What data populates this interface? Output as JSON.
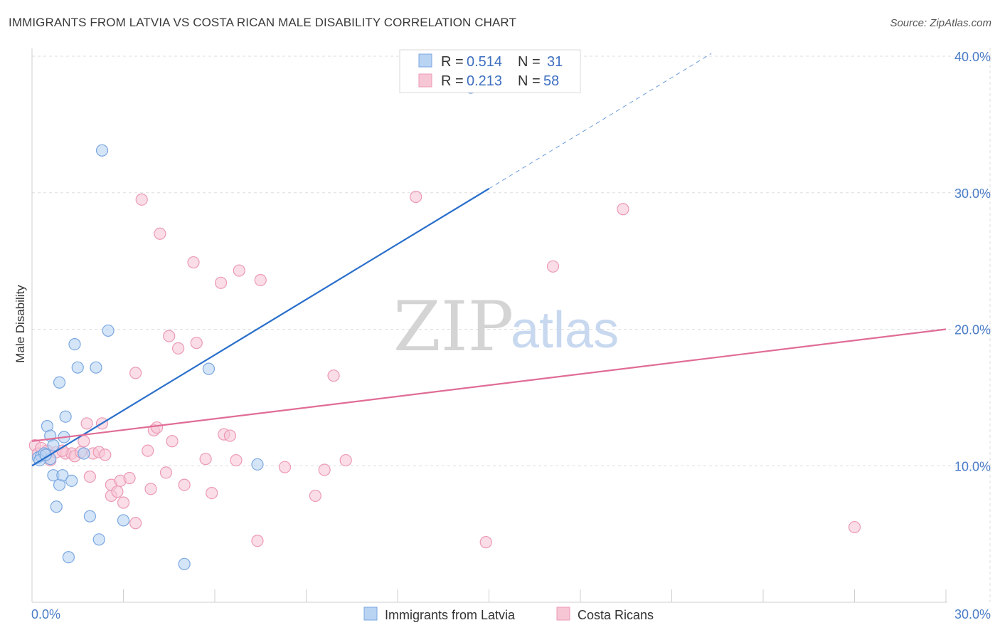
{
  "title": "IMMIGRANTS FROM LATVIA VS COSTA RICAN MALE DISABILITY CORRELATION CHART",
  "source": "Source: ZipAtlas.com",
  "watermark": {
    "zip": "ZIP",
    "atlas": "atlas"
  },
  "colors": {
    "blue_fill": "#b9d3f3",
    "blue_stroke": "#7aa7e0",
    "blue_line": "#2a6fcb",
    "pink_fill": "#f7c6d5",
    "pink_stroke": "#ec9ab5",
    "pink_line": "#e06c96",
    "grid": "#dddddd",
    "axis_text": "#4a7cc7"
  },
  "legend": {
    "rows": [
      {
        "r_label": "R =",
        "r_value": "0.514",
        "n_label": "N =",
        "n_value": "31",
        "series": "latvia"
      },
      {
        "r_label": "R =",
        "r_value": "0.213",
        "n_label": "N =",
        "n_value": "58",
        "series": "costa"
      }
    ]
  },
  "bottom_legend": [
    "Immigrants from Latvia",
    "Costa Ricans"
  ],
  "chart_data": {
    "type": "scatter",
    "title": "IMMIGRANTS FROM LATVIA VS COSTA RICAN MALE DISABILITY CORRELATION CHART",
    "xlabel": "",
    "ylabel": "Male Disability",
    "xlim": [
      0,
      30
    ],
    "ylim": [
      0,
      40
    ],
    "x_tick_labels": [
      "0.0%",
      "30.0%"
    ],
    "y_ticks": [
      10,
      20,
      30,
      40
    ],
    "y_tick_labels": [
      "10.0%",
      "20.0%",
      "30.0%",
      "40.0%"
    ],
    "series": [
      {
        "name": "Immigrants from Latvia",
        "key": "latvia",
        "R": 0.514,
        "N": 31,
        "trend": {
          "x0": 0,
          "y0": 10.0,
          "x1": 15,
          "y1": 30.3,
          "dash_to_x": 22.3,
          "dash_to_y": 40.2
        },
        "points": [
          [
            0.2,
            10.6
          ],
          [
            0.3,
            10.7
          ],
          [
            0.4,
            10.9
          ],
          [
            0.6,
            10.5
          ],
          [
            0.5,
            12.9
          ],
          [
            0.6,
            12.2
          ],
          [
            0.7,
            11.5
          ],
          [
            0.7,
            9.3
          ],
          [
            0.8,
            7.0
          ],
          [
            0.9,
            8.6
          ],
          [
            0.9,
            16.1
          ],
          [
            1.0,
            9.3
          ],
          [
            1.05,
            12.1
          ],
          [
            1.1,
            13.6
          ],
          [
            1.2,
            3.3
          ],
          [
            1.3,
            8.9
          ],
          [
            1.4,
            18.9
          ],
          [
            1.5,
            17.2
          ],
          [
            1.7,
            10.9
          ],
          [
            1.9,
            6.3
          ],
          [
            2.2,
            4.6
          ],
          [
            2.1,
            17.2
          ],
          [
            2.3,
            33.1
          ],
          [
            2.5,
            19.9
          ],
          [
            3.0,
            6.0
          ],
          [
            5.0,
            2.8
          ],
          [
            5.8,
            17.1
          ],
          [
            7.4,
            10.1
          ],
          [
            14.4,
            37.7
          ],
          [
            0.25,
            10.4
          ],
          [
            0.45,
            10.8
          ]
        ]
      },
      {
        "name": "Costa Ricans",
        "key": "costa",
        "R": 0.213,
        "N": 58,
        "trend": {
          "x0": 0,
          "y0": 11.8,
          "x1": 30,
          "y1": 20.0
        },
        "points": [
          [
            0.1,
            11.5
          ],
          [
            0.2,
            10.9
          ],
          [
            0.3,
            11.3
          ],
          [
            0.5,
            11.1
          ],
          [
            0.6,
            10.4
          ],
          [
            0.8,
            11.0
          ],
          [
            1.1,
            10.9
          ],
          [
            1.3,
            10.9
          ],
          [
            1.4,
            10.7
          ],
          [
            1.6,
            11.0
          ],
          [
            1.7,
            11.8
          ],
          [
            1.8,
            13.1
          ],
          [
            1.9,
            9.2
          ],
          [
            2.0,
            10.9
          ],
          [
            2.2,
            11.0
          ],
          [
            2.3,
            13.1
          ],
          [
            2.4,
            10.8
          ],
          [
            2.6,
            7.8
          ],
          [
            2.6,
            8.6
          ],
          [
            2.8,
            8.1
          ],
          [
            2.9,
            8.9
          ],
          [
            3.0,
            7.3
          ],
          [
            3.2,
            9.1
          ],
          [
            3.4,
            5.8
          ],
          [
            3.4,
            16.8
          ],
          [
            3.6,
            29.5
          ],
          [
            3.8,
            11.1
          ],
          [
            3.9,
            8.3
          ],
          [
            4.0,
            12.6
          ],
          [
            4.1,
            12.8
          ],
          [
            4.2,
            27.0
          ],
          [
            4.4,
            9.5
          ],
          [
            4.5,
            19.5
          ],
          [
            4.6,
            11.8
          ],
          [
            4.8,
            18.6
          ],
          [
            5.0,
            8.6
          ],
          [
            5.3,
            24.9
          ],
          [
            5.4,
            19.0
          ],
          [
            5.7,
            10.5
          ],
          [
            5.9,
            8.0
          ],
          [
            6.2,
            23.4
          ],
          [
            6.3,
            12.3
          ],
          [
            6.5,
            12.2
          ],
          [
            6.7,
            10.4
          ],
          [
            6.8,
            24.3
          ],
          [
            7.4,
            4.5
          ],
          [
            7.5,
            23.6
          ],
          [
            8.3,
            9.9
          ],
          [
            9.3,
            7.8
          ],
          [
            9.6,
            9.7
          ],
          [
            9.9,
            16.6
          ],
          [
            10.3,
            10.4
          ],
          [
            12.6,
            29.7
          ],
          [
            14.9,
            4.4
          ],
          [
            17.1,
            24.6
          ],
          [
            19.4,
            28.8
          ],
          [
            27.0,
            5.5
          ],
          [
            1.0,
            11.1
          ]
        ]
      }
    ]
  }
}
